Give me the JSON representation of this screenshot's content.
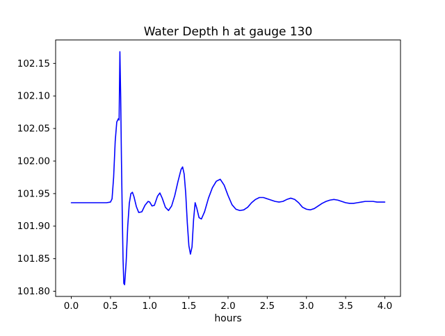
{
  "chart_data": {
    "type": "line",
    "title": "Water Depth h at gauge 130",
    "xlabel": "hours",
    "ylabel": "",
    "grid": false,
    "legend": null,
    "line_color": "#0000ff",
    "axis_color": "#000000",
    "background_color": "#ffffff",
    "xlim": [
      -0.2,
      4.2
    ],
    "ylim": [
      101.792,
      102.186
    ],
    "x_ticks": [
      0.0,
      0.5,
      1.0,
      1.5,
      2.0,
      2.5,
      3.0,
      3.5,
      4.0
    ],
    "x_tick_labels": [
      "0.0",
      "0.5",
      "1.0",
      "1.5",
      "2.0",
      "2.5",
      "3.0",
      "3.5",
      "4.0"
    ],
    "y_ticks": [
      101.8,
      101.85,
      101.9,
      101.95,
      102.0,
      102.05,
      102.1,
      102.15
    ],
    "y_tick_labels": [
      "101.80",
      "101.85",
      "101.90",
      "101.95",
      "102.00",
      "102.05",
      "102.10",
      "102.15"
    ],
    "series": [
      {
        "name": "water-depth-h",
        "points": [
          [
            0.0,
            101.936
          ],
          [
            0.05,
            101.936
          ],
          [
            0.1,
            101.936
          ],
          [
            0.15,
            101.936
          ],
          [
            0.2,
            101.936
          ],
          [
            0.25,
            101.936
          ],
          [
            0.3,
            101.936
          ],
          [
            0.35,
            101.936
          ],
          [
            0.4,
            101.936
          ],
          [
            0.45,
            101.936
          ],
          [
            0.5,
            101.937
          ],
          [
            0.52,
            101.942
          ],
          [
            0.54,
            101.975
          ],
          [
            0.56,
            102.03
          ],
          [
            0.58,
            102.06
          ],
          [
            0.6,
            102.065
          ],
          [
            0.61,
            102.063
          ],
          [
            0.62,
            102.168
          ],
          [
            0.63,
            102.1
          ],
          [
            0.64,
            102.0
          ],
          [
            0.65,
            101.92
          ],
          [
            0.66,
            101.85
          ],
          [
            0.67,
            101.812
          ],
          [
            0.68,
            101.81
          ],
          [
            0.7,
            101.845
          ],
          [
            0.72,
            101.9
          ],
          [
            0.74,
            101.935
          ],
          [
            0.76,
            101.95
          ],
          [
            0.78,
            101.952
          ],
          [
            0.8,
            101.945
          ],
          [
            0.83,
            101.93
          ],
          [
            0.86,
            101.921
          ],
          [
            0.9,
            101.922
          ],
          [
            0.94,
            101.932
          ],
          [
            0.98,
            101.938
          ],
          [
            1.0,
            101.937
          ],
          [
            1.03,
            101.931
          ],
          [
            1.06,
            101.932
          ],
          [
            1.1,
            101.946
          ],
          [
            1.13,
            101.951
          ],
          [
            1.16,
            101.943
          ],
          [
            1.2,
            101.929
          ],
          [
            1.24,
            101.924
          ],
          [
            1.28,
            101.931
          ],
          [
            1.32,
            101.947
          ],
          [
            1.36,
            101.968
          ],
          [
            1.4,
            101.987
          ],
          [
            1.42,
            101.991
          ],
          [
            1.44,
            101.98
          ],
          [
            1.46,
            101.95
          ],
          [
            1.48,
            101.905
          ],
          [
            1.5,
            101.87
          ],
          [
            1.52,
            101.857
          ],
          [
            1.54,
            101.868
          ],
          [
            1.56,
            101.91
          ],
          [
            1.58,
            101.936
          ],
          [
            1.6,
            101.928
          ],
          [
            1.63,
            101.913
          ],
          [
            1.66,
            101.911
          ],
          [
            1.7,
            101.922
          ],
          [
            1.75,
            101.943
          ],
          [
            1.8,
            101.959
          ],
          [
            1.85,
            101.969
          ],
          [
            1.9,
            101.972
          ],
          [
            1.95,
            101.963
          ],
          [
            2.0,
            101.947
          ],
          [
            2.05,
            101.933
          ],
          [
            2.1,
            101.926
          ],
          [
            2.15,
            101.924
          ],
          [
            2.2,
            101.925
          ],
          [
            2.25,
            101.929
          ],
          [
            2.3,
            101.936
          ],
          [
            2.35,
            101.941
          ],
          [
            2.4,
            101.944
          ],
          [
            2.45,
            101.944
          ],
          [
            2.5,
            101.942
          ],
          [
            2.55,
            101.94
          ],
          [
            2.6,
            101.938
          ],
          [
            2.65,
            101.937
          ],
          [
            2.7,
            101.938
          ],
          [
            2.75,
            101.941
          ],
          [
            2.8,
            101.943
          ],
          [
            2.85,
            101.941
          ],
          [
            2.9,
            101.936
          ],
          [
            2.95,
            101.929
          ],
          [
            3.0,
            101.926
          ],
          [
            3.05,
            101.925
          ],
          [
            3.1,
            101.927
          ],
          [
            3.15,
            101.931
          ],
          [
            3.2,
            101.935
          ],
          [
            3.25,
            101.938
          ],
          [
            3.3,
            101.94
          ],
          [
            3.35,
            101.941
          ],
          [
            3.4,
            101.94
          ],
          [
            3.45,
            101.938
          ],
          [
            3.5,
            101.936
          ],
          [
            3.55,
            101.935
          ],
          [
            3.6,
            101.935
          ],
          [
            3.65,
            101.936
          ],
          [
            3.7,
            101.937
          ],
          [
            3.75,
            101.938
          ],
          [
            3.8,
            101.938
          ],
          [
            3.85,
            101.938
          ],
          [
            3.9,
            101.937
          ],
          [
            3.95,
            101.937
          ],
          [
            4.0,
            101.937
          ]
        ]
      }
    ]
  }
}
